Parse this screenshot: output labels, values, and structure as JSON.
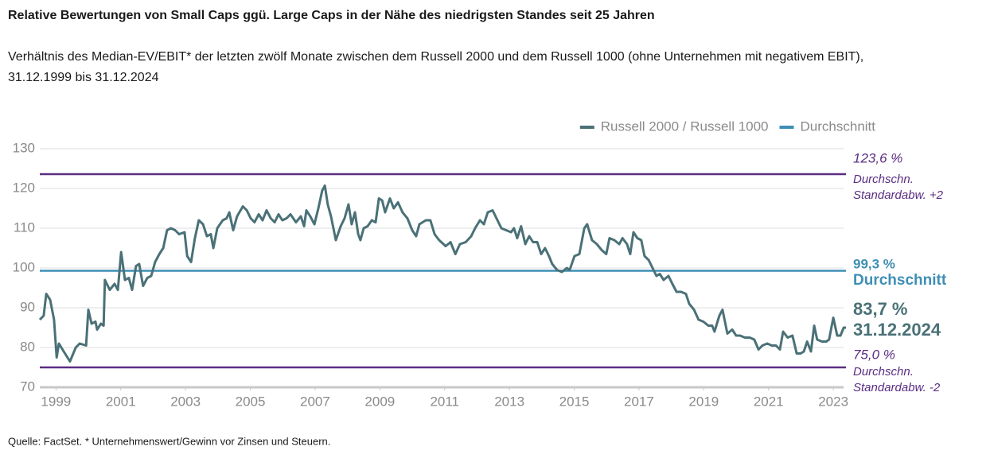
{
  "chart_data": {
    "type": "line",
    "title": "Relative Bewertungen von Small Caps ggü. Large Caps in der Nähe des niedrigsten Standes seit 25 Jahren",
    "subtitle": [
      "Verhältnis des Median-EV/EBIT* der letzten zwölf Monate zwischen dem Russell 2000 und dem Russell 1000 (ohne Unternehmen mit negativem EBIT),",
      "31.12.1999 bis 31.12.2024"
    ],
    "source": "Quelle: FactSet. * Unternehmenswert/Gewinn vor Zinsen und Steuern.",
    "xlim": [
      1998.5,
      2023.39
    ],
    "xticks": [
      1999,
      2001,
      2003,
      2005,
      2007,
      2009,
      2011,
      2013,
      2015,
      2017,
      2019,
      2021,
      2023
    ],
    "ylim": [
      70,
      130
    ],
    "yticks": [
      70,
      80,
      90,
      100,
      110,
      120,
      130
    ],
    "grid": true,
    "legend": "top-right",
    "series": [
      {
        "name": "Russell 2000 / Russell 1000",
        "color": "#4a7177",
        "x": [
          1998.5,
          1998.62,
          1998.7,
          1998.82,
          1998.94,
          1999.02,
          1999.09,
          1999.24,
          1999.43,
          1999.61,
          1999.73,
          1999.93,
          2000.0,
          2000.1,
          2000.22,
          2000.27,
          2000.39,
          2000.47,
          2000.51,
          2000.66,
          2000.81,
          2000.91,
          2001.01,
          2001.13,
          2001.25,
          2001.35,
          2001.47,
          2001.57,
          2001.69,
          2001.82,
          2001.94,
          2002.06,
          2002.19,
          2002.31,
          2002.43,
          2002.55,
          2002.68,
          2002.8,
          2002.97,
          2003.05,
          2003.17,
          2003.29,
          2003.41,
          2003.54,
          2003.66,
          2003.78,
          2003.86,
          2003.98,
          2004.15,
          2004.27,
          2004.35,
          2004.47,
          2004.59,
          2004.77,
          2004.89,
          2005.01,
          2005.13,
          2005.26,
          2005.38,
          2005.5,
          2005.63,
          2005.75,
          2005.87,
          2005.99,
          2006.12,
          2006.24,
          2006.41,
          2006.56,
          2006.66,
          2006.73,
          2006.85,
          2006.98,
          2007.1,
          2007.22,
          2007.3,
          2007.39,
          2007.49,
          2007.64,
          2007.79,
          2007.91,
          2008.03,
          2008.13,
          2008.23,
          2008.33,
          2008.4,
          2008.5,
          2008.62,
          2008.75,
          2008.87,
          2008.97,
          2009.07,
          2009.16,
          2009.31,
          2009.43,
          2009.56,
          2009.7,
          2009.85,
          2010.0,
          2010.12,
          2010.22,
          2010.42,
          2010.56,
          2010.69,
          2010.83,
          2011.03,
          2011.18,
          2011.33,
          2011.47,
          2011.65,
          2011.82,
          2011.94,
          2012.09,
          2012.21,
          2012.33,
          2012.48,
          2012.63,
          2012.75,
          2012.9,
          2013.05,
          2013.14,
          2013.24,
          2013.36,
          2013.49,
          2013.61,
          2013.73,
          2013.86,
          2013.98,
          2014.1,
          2014.22,
          2014.32,
          2014.47,
          2014.62,
          2014.77,
          2014.86,
          2015.01,
          2015.16,
          2015.31,
          2015.4,
          2015.55,
          2015.7,
          2015.85,
          2015.99,
          2016.09,
          2016.24,
          2016.39,
          2016.49,
          2016.63,
          2016.73,
          2016.83,
          2016.95,
          2017.07,
          2017.17,
          2017.3,
          2017.42,
          2017.54,
          2017.64,
          2017.76,
          2017.91,
          2018.03,
          2018.16,
          2018.3,
          2018.45,
          2018.55,
          2018.7,
          2018.84,
          2018.99,
          2019.14,
          2019.26,
          2019.33,
          2019.48,
          2019.58,
          2019.73,
          2019.88,
          2020.0,
          2020.12,
          2020.27,
          2020.42,
          2020.56,
          2020.69,
          2020.81,
          2020.96,
          2021.1,
          2021.23,
          2021.35,
          2021.45,
          2021.59,
          2021.74,
          2021.87,
          2021.99,
          2022.09,
          2022.19,
          2022.31,
          2022.41,
          2022.5,
          2022.65,
          2022.78,
          2022.87,
          2023.0,
          2023.12,
          2023.22,
          2023.32,
          2023.39
        ],
        "values": [
          87,
          88,
          93.5,
          92,
          87,
          77.5,
          81,
          79,
          76.5,
          80,
          81,
          80.5,
          89.5,
          86,
          86.5,
          84.5,
          86,
          85.5,
          97,
          94.5,
          96,
          94.5,
          104,
          97,
          97.5,
          94.5,
          100.5,
          101,
          95.5,
          97.5,
          98,
          101.5,
          103.5,
          105,
          109.5,
          110,
          109.5,
          108.5,
          109,
          103,
          101.5,
          107.5,
          112,
          111,
          108,
          108.5,
          105,
          110,
          112,
          112.5,
          114,
          109.5,
          113,
          115.5,
          114.5,
          112.5,
          111.5,
          113.5,
          112,
          114.5,
          112.5,
          111.5,
          113.5,
          112,
          112.5,
          113.5,
          111.5,
          113,
          110.5,
          114.5,
          113,
          111,
          115,
          119.5,
          120.7,
          116,
          113,
          107,
          110.5,
          112.5,
          116,
          111,
          114,
          108.5,
          107,
          110,
          110.5,
          112,
          111.5,
          117.5,
          117,
          114,
          117.5,
          115,
          116.5,
          114,
          112.5,
          109.5,
          108,
          111,
          112,
          112,
          108.5,
          107,
          105.5,
          106.5,
          103.5,
          106,
          106.5,
          108,
          110,
          112,
          111,
          114,
          114.5,
          112,
          110,
          109.5,
          109,
          110,
          107.5,
          110.5,
          106,
          108,
          106.5,
          106.5,
          103.5,
          105,
          103,
          101,
          99.5,
          99,
          100,
          99.5,
          103,
          103.5,
          110,
          111,
          107,
          106,
          104.5,
          103.5,
          107.5,
          107,
          106,
          107.5,
          106,
          103.5,
          109,
          107.5,
          107,
          103,
          102,
          100,
          98,
          98.5,
          97,
          98,
          96,
          94,
          94,
          93.5,
          91,
          89.5,
          87,
          86.5,
          85.5,
          85.5,
          84,
          88,
          89.5,
          83.5,
          84.5,
          83,
          83,
          82.5,
          82.5,
          82,
          79.5,
          80.5,
          81,
          80.5,
          80.5,
          79.5,
          84,
          82.5,
          83,
          78.5,
          78.5,
          79,
          81.5,
          79,
          85.5,
          82,
          81.5,
          81.5,
          82,
          87.5,
          83,
          83,
          85,
          85
        ]
      }
    ],
    "reference_lines": [
      {
        "value": 123.6,
        "label": "123,6 %",
        "note": [
          "Durchschn.",
          "Standardabw. +2"
        ],
        "color": "#5b2d82"
      },
      {
        "value": 99.3,
        "label": "99,3 %",
        "name": "Durchschnitt",
        "color": "#3f8fb5"
      },
      {
        "value": 75.0,
        "label": "75,0 %",
        "note": [
          "Durchschn.",
          "Standardabw. -2"
        ],
        "color": "#5b2d82"
      }
    ],
    "end_annotation": {
      "label": "83,7 %",
      "date": "31.12.2024"
    }
  }
}
